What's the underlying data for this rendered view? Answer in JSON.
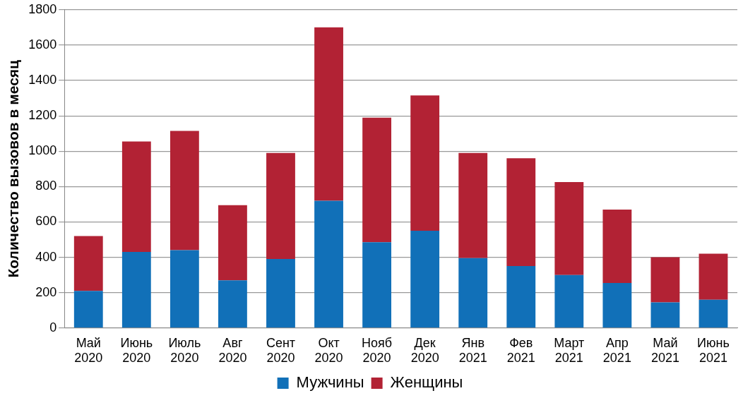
{
  "chart_data": {
    "type": "bar",
    "stacked": true,
    "ylabel": "Количество вызовов в месяц",
    "categories": [
      "Май 2020",
      "Июнь 2020",
      "Июль 2020",
      "Авг 2020",
      "Сент 2020",
      "Окт 2020",
      "Нояб 2020",
      "Дек 2020",
      "Янв 2021",
      "Фев 2021",
      "Март 2021",
      "Апр 2021",
      "Май 2021",
      "Июнь 2021"
    ],
    "series": [
      {
        "name": "Мужчины",
        "color": "#1170b8",
        "values": [
          210,
          430,
          440,
          270,
          390,
          720,
          485,
          550,
          395,
          350,
          300,
          255,
          145,
          160
        ]
      },
      {
        "name": "Женщины",
        "color": "#b22234",
        "values": [
          310,
          625,
          675,
          425,
          600,
          980,
          705,
          765,
          595,
          610,
          525,
          415,
          255,
          260
        ]
      }
    ],
    "ylim": [
      0,
      1800
    ],
    "yticks": [
      0,
      200,
      400,
      600,
      800,
      1000,
      1200,
      1400,
      1600,
      1800
    ],
    "grid": "y",
    "legend": "bottom"
  }
}
